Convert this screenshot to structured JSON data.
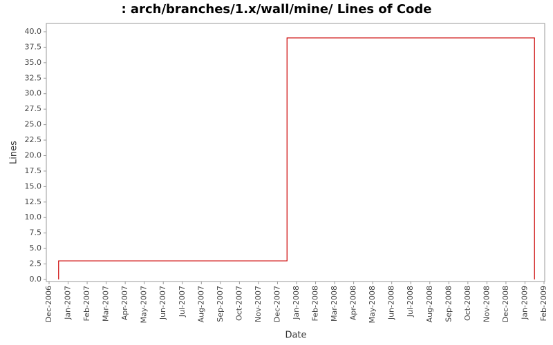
{
  "chart_data": {
    "type": "step",
    "title": ": arch/branches/1.x/wall/mine/ Lines of Code",
    "xlabel": "Date",
    "ylabel": "Lines",
    "x": [
      "2006-12",
      "2006-12",
      "2007-12",
      "2009-01"
    ],
    "values": [
      0,
      3,
      39,
      0
    ],
    "color": "#cc0000",
    "xlim": [
      "2006-12",
      "2009-02"
    ],
    "xticks": [
      {
        "value": "2006-12",
        "label": "Dec-2006"
      },
      {
        "value": "2007-01",
        "label": "Jan-2007"
      },
      {
        "value": "2007-02",
        "label": "Feb-2007"
      },
      {
        "value": "2007-03",
        "label": "Mar-2007"
      },
      {
        "value": "2007-04",
        "label": "Apr-2007"
      },
      {
        "value": "2007-05",
        "label": "May-2007"
      },
      {
        "value": "2007-06",
        "label": "Jun-2007"
      },
      {
        "value": "2007-07",
        "label": "Jul-2007"
      },
      {
        "value": "2007-08",
        "label": "Aug-2007"
      },
      {
        "value": "2007-09",
        "label": "Sep-2007"
      },
      {
        "value": "2007-10",
        "label": "Oct-2007"
      },
      {
        "value": "2007-11",
        "label": "Nov-2007"
      },
      {
        "value": "2007-12",
        "label": "Dec-2007"
      },
      {
        "value": "2008-01",
        "label": "Jan-2008"
      },
      {
        "value": "2008-02",
        "label": "Feb-2008"
      },
      {
        "value": "2008-03",
        "label": "Mar-2008"
      },
      {
        "value": "2008-04",
        "label": "Apr-2008"
      },
      {
        "value": "2008-05",
        "label": "May-2008"
      },
      {
        "value": "2008-06",
        "label": "Jun-2008"
      },
      {
        "value": "2008-07",
        "label": "Jul-2008"
      },
      {
        "value": "2008-08",
        "label": "Aug-2008"
      },
      {
        "value": "2008-09",
        "label": "Sep-2008"
      },
      {
        "value": "2008-10",
        "label": "Oct-2008"
      },
      {
        "value": "2008-11",
        "label": "Nov-2008"
      },
      {
        "value": "2008-12",
        "label": "Dec-2008"
      },
      {
        "value": "2009-01",
        "label": "Jan-2009"
      },
      {
        "value": "2009-02",
        "label": "Feb-2009"
      }
    ],
    "ylim": [
      0,
      41
    ],
    "yticks": [
      {
        "value": 0,
        "label": "0.0"
      },
      2.5,
      {
        "value": 5,
        "label": "5.0"
      },
      7.5,
      {
        "value": 10,
        "label": "10.0"
      },
      12.5,
      {
        "value": 15,
        "label": "15.0"
      },
      17.5,
      {
        "value": 20,
        "label": "20.0"
      },
      22.5,
      {
        "value": 25,
        "label": "25.0"
      },
      27.5,
      {
        "value": 30,
        "label": "30.0"
      },
      32.5,
      {
        "value": 35,
        "label": "35.0"
      },
      37.5,
      {
        "value": 40,
        "label": "40.0"
      }
    ],
    "grid": false
  }
}
